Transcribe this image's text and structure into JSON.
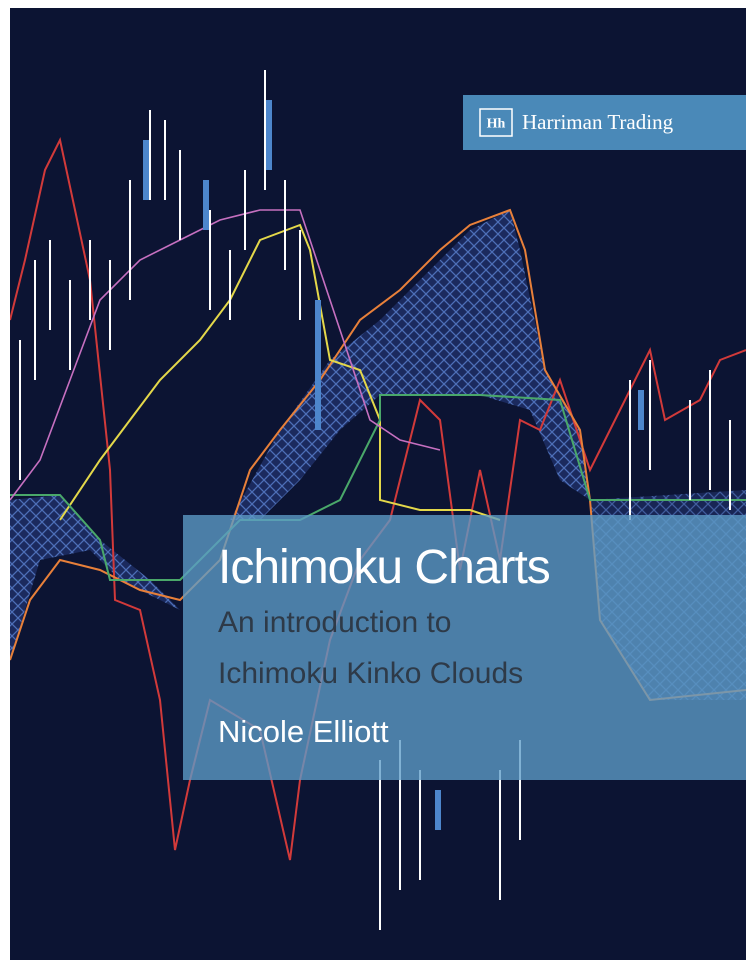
{
  "publisher": {
    "logo": "Hh",
    "name": "Harriman Trading"
  },
  "title": "Ichimoku Charts",
  "subtitle": [
    "An introduction to",
    "Ichimoku Kinko Clouds"
  ],
  "author": "Nicole Elliott"
}
